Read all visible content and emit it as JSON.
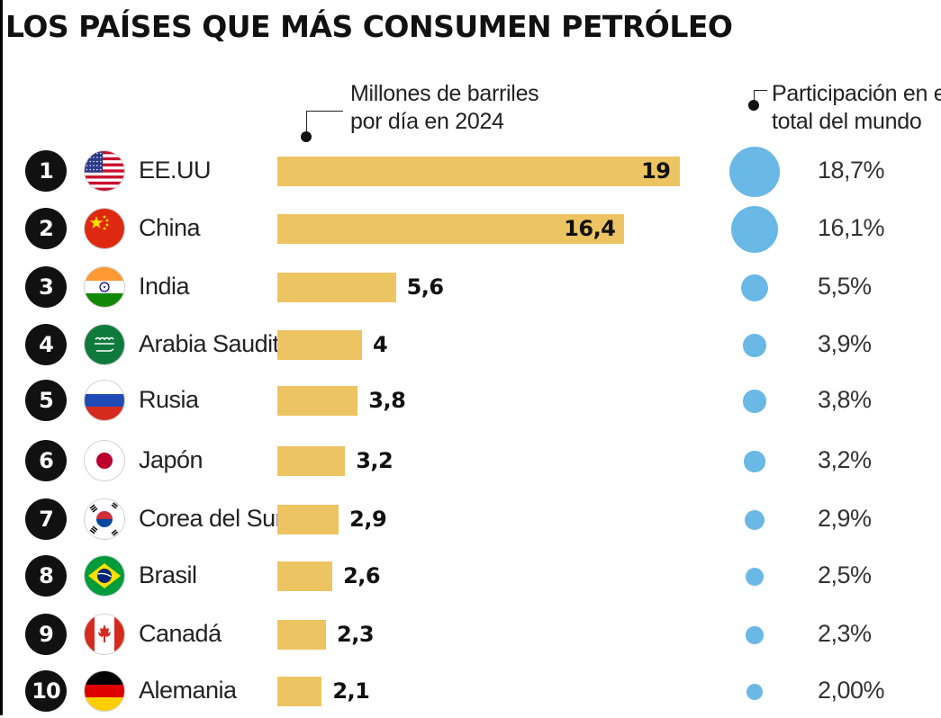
{
  "title": "LOS PAÍSES QUE MÁS CONSUMEN PETRÓLEO",
  "bar_label": [
    "Millones de barriles",
    "por día en 2024"
  ],
  "share_label": [
    "Participación en el",
    "total del mundo"
  ],
  "colors": {
    "bar": "#edc462",
    "bubble": "#69b8e6",
    "rank_badge": "#111111"
  },
  "chart_data": {
    "type": "bar",
    "orientation": "horizontal",
    "title": "LOS PAÍSES QUE MÁS CONSUMEN PETRÓLEO",
    "categories": [
      "EE.UU",
      "China",
      "India",
      "Arabia Saudita",
      "Rusia",
      "Japón",
      "Corea del Sur",
      "Brasil",
      "Canadá",
      "Alemania"
    ],
    "series": [
      {
        "name": "Millones de barriles por día en 2024",
        "values": [
          19,
          16.4,
          5.6,
          4,
          3.8,
          3.2,
          2.9,
          2.6,
          2.3,
          2.1
        ],
        "labels": [
          "19",
          "16,4",
          "5,6",
          "4",
          "3,8",
          "3,2",
          "2,9",
          "2,6",
          "2,3",
          "2,1"
        ]
      },
      {
        "name": "Participación en el total del mundo",
        "values": [
          18.7,
          16.1,
          5.5,
          3.9,
          3.8,
          3.2,
          2.9,
          2.5,
          2.3,
          2.0
        ],
        "labels": [
          "18,7%",
          "16,1%",
          "5,5%",
          "3,9%",
          "3,8%",
          "3,2%",
          "2,9%",
          "2,5%",
          "2,3%",
          "2,00%"
        ]
      }
    ],
    "ranks": [
      "1",
      "2",
      "3",
      "4",
      "5",
      "6",
      "7",
      "8",
      "9",
      "10"
    ],
    "flags": [
      "us-flag-icon",
      "china-flag-icon",
      "india-flag-icon",
      "saudi-arabia-flag-icon",
      "russia-flag-icon",
      "japan-flag-icon",
      "south-korea-flag-icon",
      "brazil-flag-icon",
      "canada-flag-icon",
      "germany-flag-icon"
    ],
    "grid": false,
    "legend": "none"
  }
}
